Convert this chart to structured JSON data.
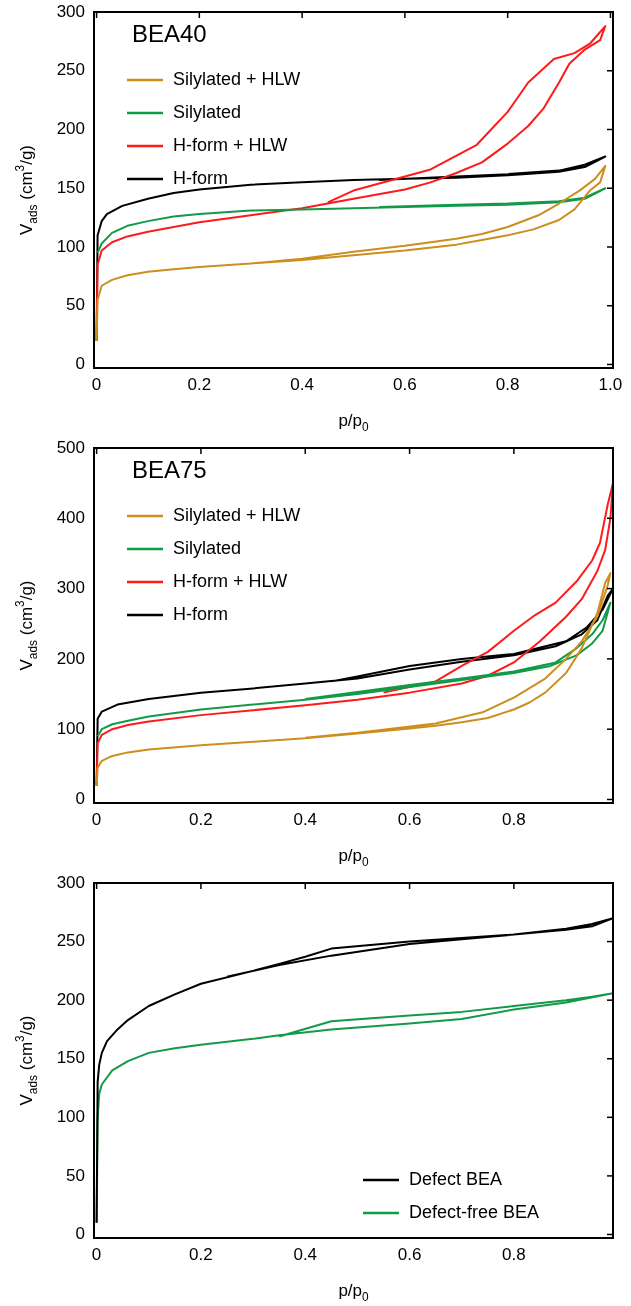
{
  "chart_data": [
    {
      "type": "line",
      "title": "BEA40",
      "xlabel": "p/p$_{0}$",
      "ylabel": "V$_{ads}$ (cm$^{3}$/g)",
      "xlim": [
        -0.005,
        1.005
      ],
      "xticks": [
        0,
        0.2,
        0.4,
        0.6,
        0.8,
        {
          "value": 1,
          "label": "1.0"
        }
      ],
      "ylim": [
        -3,
        300
      ],
      "yticks": [
        0,
        50,
        100,
        150,
        200,
        250,
        300
      ],
      "legend": "top left",
      "marker": "none",
      "series": [
        {
          "name": "Silylated + HLW",
          "color": "#cc8e1e",
          "x": [
            0,
            0.002,
            0.01,
            0.03,
            0.06,
            0.1,
            0.15,
            0.2,
            0.3,
            0.4,
            0.5,
            0.6,
            0.7,
            0.75,
            0.8,
            0.85,
            0.9,
            0.93,
            0.96,
            0.98,
            0.99,
            0.97,
            0.94,
            0.9,
            0.86,
            0.8,
            0.75,
            0.7,
            0.6,
            0.5,
            0.4,
            0.3
          ],
          "values": [
            20,
            55,
            67,
            72,
            76,
            79,
            81,
            83,
            86,
            89,
            93,
            97,
            102,
            106,
            110,
            115,
            123,
            132,
            148,
            155,
            169,
            158,
            148,
            137,
            127,
            117,
            111,
            107,
            101,
            96,
            90,
            86
          ]
        },
        {
          "name": "Silylated",
          "color": "#129a48",
          "x": [
            0.002,
            0.01,
            0.03,
            0.06,
            0.1,
            0.15,
            0.2,
            0.3,
            0.4,
            0.5,
            0.6,
            0.7,
            0.8,
            0.9,
            0.95,
            0.99,
            0.95,
            0.9,
            0.8,
            0.7,
            0.55
          ],
          "values": [
            95,
            103,
            112,
            118,
            122,
            126,
            128,
            131,
            132,
            133,
            134,
            135,
            136,
            138,
            141,
            150,
            142,
            139,
            137,
            136,
            134
          ]
        },
        {
          "name": "H-form + HLW",
          "color": "#ff1a1a",
          "x": [
            0,
            0.002,
            0.01,
            0.03,
            0.06,
            0.1,
            0.15,
            0.2,
            0.3,
            0.4,
            0.45,
            0.5,
            0.6,
            0.65,
            0.7,
            0.75,
            0.8,
            0.84,
            0.87,
            0.9,
            0.92,
            0.95,
            0.98,
            0.99,
            0.96,
            0.93,
            0.89,
            0.84,
            0.8,
            0.74,
            0.65,
            0.6,
            0.5,
            0.45
          ],
          "values": [
            20,
            85,
            97,
            104,
            109,
            113,
            117,
            121,
            127,
            133,
            137,
            141,
            149,
            155,
            163,
            172,
            188,
            203,
            218,
            240,
            256,
            268,
            276,
            288,
            273,
            265,
            260,
            240,
            215,
            187,
            166,
            160,
            148,
            138
          ]
        },
        {
          "name": "H-form",
          "color": "#000000",
          "x": [
            0,
            0.002,
            0.01,
            0.02,
            0.05,
            0.1,
            0.15,
            0.2,
            0.3,
            0.4,
            0.5,
            0.6,
            0.7,
            0.8,
            0.9,
            0.95,
            0.99,
            0.95,
            0.9,
            0.8,
            0.7,
            0.55
          ],
          "values": [
            20,
            110,
            122,
            128,
            135,
            141,
            146,
            149,
            153,
            155,
            157,
            158,
            159,
            161,
            164,
            168,
            177,
            170,
            165,
            162,
            160,
            157
          ]
        }
      ]
    },
    {
      "type": "line",
      "title": "BEA75",
      "xlabel": "p/p$_{0}$",
      "ylabel": "V$_{ads}$ (cm$^{3}$/g)",
      "xlim": [
        -0.005,
        0.99
      ],
      "xticks": [
        0,
        0.2,
        0.4,
        0.6,
        0.8
      ],
      "ylim": [
        -5,
        500
      ],
      "yticks": [
        0,
        100,
        200,
        300,
        400,
        500
      ],
      "legend": "top left",
      "marker": "none",
      "series": [
        {
          "name": "Silylated + HLW",
          "color": "#cc8e1e",
          "x": [
            0,
            0.002,
            0.01,
            0.03,
            0.06,
            0.1,
            0.2,
            0.3,
            0.4,
            0.5,
            0.6,
            0.65,
            0.7,
            0.75,
            0.8,
            0.83,
            0.86,
            0.9,
            0.93,
            0.96,
            0.975,
            0.985,
            0.98,
            0.96,
            0.93,
            0.9,
            0.86,
            0.8,
            0.74,
            0.65,
            0.5,
            0.4
          ],
          "values": [
            20,
            45,
            55,
            62,
            67,
            71,
            77,
            82,
            87,
            94,
            101,
            105,
            110,
            116,
            128,
            138,
            152,
            180,
            215,
            265,
            308,
            322,
            305,
            260,
            225,
            200,
            172,
            145,
            124,
            108,
            95,
            88
          ]
        },
        {
          "name": "Silylated",
          "color": "#129a48",
          "x": [
            0.002,
            0.01,
            0.03,
            0.06,
            0.1,
            0.2,
            0.3,
            0.4,
            0.5,
            0.6,
            0.7,
            0.8,
            0.87,
            0.92,
            0.95,
            0.97,
            0.985,
            0.97,
            0.95,
            0.92,
            0.88,
            0.8,
            0.7,
            0.6,
            0.5,
            0.4
          ],
          "values": [
            90,
            100,
            107,
            112,
            118,
            128,
            135,
            142,
            150,
            160,
            170,
            180,
            190,
            205,
            222,
            240,
            280,
            255,
            235,
            215,
            195,
            182,
            172,
            163,
            153,
            143
          ]
        },
        {
          "name": "H-form + HLW",
          "color": "#ff1a1a",
          "x": [
            0,
            0.002,
            0.01,
            0.03,
            0.06,
            0.1,
            0.2,
            0.3,
            0.4,
            0.5,
            0.6,
            0.7,
            0.75,
            0.8,
            0.85,
            0.9,
            0.93,
            0.96,
            0.975,
            0.985,
            0.99,
            0.98,
            0.965,
            0.95,
            0.92,
            0.88,
            0.84,
            0.8,
            0.75,
            0.7,
            0.65,
            0.55
          ],
          "values": [
            20,
            80,
            92,
            100,
            106,
            111,
            120,
            127,
            134,
            142,
            152,
            165,
            176,
            195,
            225,
            260,
            285,
            325,
            355,
            400,
            450,
            420,
            365,
            340,
            310,
            280,
            262,
            240,
            210,
            190,
            168,
            152
          ]
        },
        {
          "name": "H-form",
          "color": "#000000",
          "x": [
            0,
            0.002,
            0.01,
            0.04,
            0.1,
            0.2,
            0.3,
            0.4,
            0.5,
            0.6,
            0.7,
            0.8,
            0.88,
            0.93,
            0.96,
            0.98,
            0.99,
            0.97,
            0.94,
            0.9,
            0.8,
            0.7,
            0.6,
            0.5,
            0.45
          ],
          "values": [
            20,
            115,
            125,
            135,
            143,
            152,
            158,
            165,
            172,
            185,
            196,
            205,
            218,
            235,
            255,
            290,
            300,
            270,
            245,
            225,
            207,
            200,
            190,
            175,
            168
          ]
        }
      ]
    },
    {
      "type": "line",
      "xlabel": "p/p$_{0}$",
      "ylabel": "V$_{ads}$ (cm$^{3}$/g)",
      "xlim": [
        -0.005,
        0.99
      ],
      "xticks": [
        0,
        0.2,
        0.4,
        0.6,
        0.8
      ],
      "ylim": [
        -3,
        300
      ],
      "yticks": [
        0,
        50,
        100,
        150,
        200,
        250,
        300
      ],
      "legend": "bottom right",
      "marker": "none",
      "series": [
        {
          "name": "Defect BEA",
          "color": "#000000",
          "x": [
            0,
            0.002,
            0.005,
            0.01,
            0.02,
            0.04,
            0.06,
            0.1,
            0.15,
            0.2,
            0.3,
            0.35,
            0.4,
            0.45,
            0.6,
            0.7,
            0.8,
            0.9,
            0.95,
            0.99,
            0.95,
            0.9,
            0.8,
            0.7,
            0.6,
            0.45,
            0.35,
            0.25
          ],
          "values": [
            10,
            130,
            145,
            155,
            165,
            175,
            183,
            195,
            205,
            214,
            225,
            231,
            237,
            244,
            250,
            253,
            256,
            261,
            265,
            270,
            263,
            260,
            256,
            252,
            248,
            238,
            230,
            220
          ]
        },
        {
          "name": "Defect-free BEA",
          "color": "#129a48",
          "x": [
            0,
            0.002,
            0.005,
            0.01,
            0.03,
            0.06,
            0.1,
            0.15,
            0.2,
            0.3,
            0.35,
            0.45,
            0.6,
            0.7,
            0.8,
            0.9,
            0.99,
            0.95,
            0.9,
            0.8,
            0.7,
            0.6,
            0.45,
            0.35
          ],
          "values": [
            10,
            100,
            120,
            128,
            140,
            148,
            155,
            159,
            162,
            167,
            170,
            175,
            180,
            184,
            192,
            198,
            206,
            203,
            200,
            195,
            190,
            187,
            182,
            169
          ]
        }
      ]
    }
  ]
}
